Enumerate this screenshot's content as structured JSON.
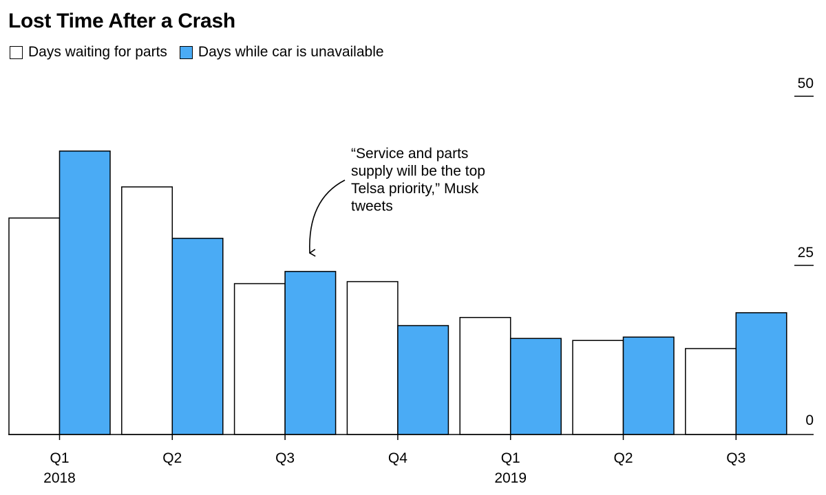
{
  "title": "Lost Time After a Crash",
  "legend": [
    {
      "label": "Days waiting for parts",
      "color": "#ffffff"
    },
    {
      "label": "Days while car is unavailable",
      "color": "#4aabf5"
    }
  ],
  "annotation": {
    "lines": [
      "“Service and parts",
      "supply will be the top",
      "Telsa priority,” Musk",
      "tweets"
    ]
  },
  "chart_data": {
    "type": "bar",
    "categories": [
      "Q1 2018",
      "Q2 2018",
      "Q3 2018",
      "Q4 2018",
      "Q1 2019",
      "Q2 2019",
      "Q3 2019"
    ],
    "x_tick_labels": [
      "Q1",
      "Q2",
      "Q3",
      "Q4",
      "Q1",
      "Q2",
      "Q3"
    ],
    "x_year_labels": [
      {
        "index": 0,
        "label": "2018"
      },
      {
        "index": 4,
        "label": "2019"
      }
    ],
    "series": [
      {
        "name": "Days waiting for parts",
        "color": "#ffffff",
        "stroke": "#000000",
        "values": [
          32,
          36.6,
          22.3,
          22.6,
          17.3,
          13.9,
          12.7
        ]
      },
      {
        "name": "Days while car is unavailable",
        "color": "#4aabf5",
        "stroke": "#000000",
        "values": [
          41.9,
          29,
          24.1,
          16.1,
          14.2,
          14.4,
          18
        ]
      }
    ],
    "ylim": [
      0,
      50
    ],
    "yticks": [
      0,
      25,
      50
    ],
    "y_axis_side": "right",
    "legend_position": "top-left",
    "grid": false
  }
}
